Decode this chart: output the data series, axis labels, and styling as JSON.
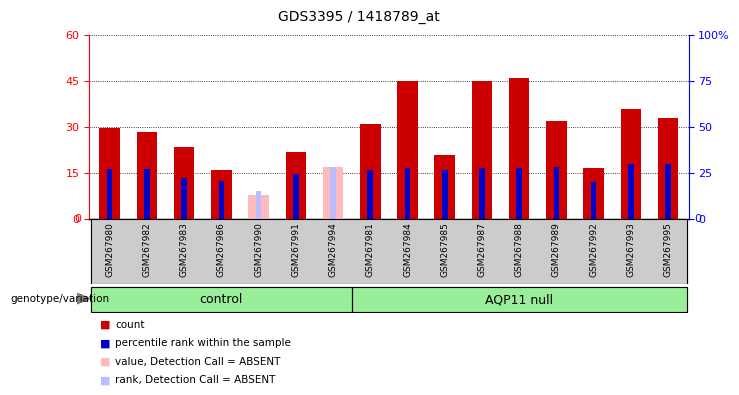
{
  "title": "GDS3395 / 1418789_at",
  "samples": [
    "GSM267980",
    "GSM267982",
    "GSM267983",
    "GSM267986",
    "GSM267990",
    "GSM267991",
    "GSM267994",
    "GSM267981",
    "GSM267984",
    "GSM267985",
    "GSM267987",
    "GSM267988",
    "GSM267989",
    "GSM267992",
    "GSM267993",
    "GSM267995"
  ],
  "n_control": 7,
  "count": [
    29.5,
    28.5,
    23.5,
    16.0,
    null,
    22.0,
    null,
    31.0,
    45.0,
    21.0,
    45.0,
    46.0,
    32.0,
    16.5,
    36.0,
    33.0
  ],
  "rank": [
    27.0,
    27.0,
    22.5,
    20.5,
    15.0,
    24.5,
    28.5,
    26.5,
    27.5,
    26.5,
    27.5,
    27.5,
    28.0,
    20.0,
    30.0,
    30.0
  ],
  "absent_value": [
    null,
    null,
    null,
    null,
    8.0,
    null,
    17.0,
    null,
    null,
    null,
    null,
    null,
    null,
    null,
    null,
    null
  ],
  "absent_rank": [
    null,
    null,
    null,
    null,
    15.0,
    null,
    28.5,
    null,
    null,
    null,
    null,
    null,
    null,
    null,
    null,
    null
  ],
  "absent_indices": [
    4,
    6
  ],
  "ylim_left": [
    0,
    60
  ],
  "ylim_right": [
    0,
    100
  ],
  "yticks_left": [
    0,
    15,
    30,
    45,
    60
  ],
  "yticks_right": [
    0,
    25,
    50,
    75,
    100
  ],
  "bar_color_count": "#cc0000",
  "bar_color_rank": "#0000cc",
  "bar_color_absent_value": "#ffbbbb",
  "bar_color_absent_rank": "#bbbbff",
  "group_color": "#99ee99",
  "xtick_bg": "#cccccc",
  "plot_bg": "#ffffff",
  "legend_items": [
    {
      "label": "count",
      "color": "#cc0000"
    },
    {
      "label": "percentile rank within the sample",
      "color": "#0000cc"
    },
    {
      "label": "value, Detection Call = ABSENT",
      "color": "#ffbbbb"
    },
    {
      "label": "rank, Detection Call = ABSENT",
      "color": "#bbbbff"
    }
  ]
}
